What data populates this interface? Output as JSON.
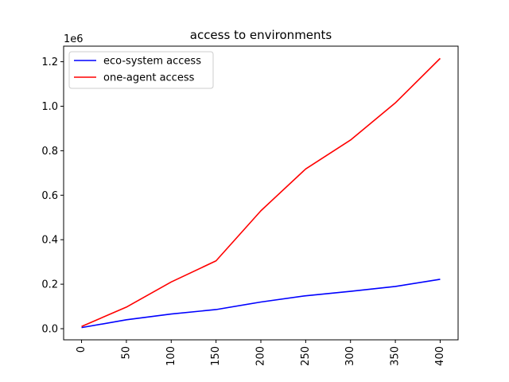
{
  "chart_data": {
    "type": "line",
    "title": "access to environments",
    "xlabel": "",
    "ylabel": "",
    "y_offset_label": "1e6",
    "x": [
      0,
      50,
      100,
      150,
      200,
      250,
      300,
      350,
      400
    ],
    "x_ticks": [
      "0",
      "50",
      "100",
      "150",
      "200",
      "250",
      "300",
      "350",
      "400"
    ],
    "x_tick_rotation": "vertical",
    "y_ticks": [
      "0.0",
      "0.2",
      "0.4",
      "0.6",
      "0.8",
      "1.0",
      "1.2"
    ],
    "y_tick_values": [
      0,
      0.2,
      0.4,
      0.6,
      0.8,
      1.0,
      1.2
    ],
    "xlim": [
      -20,
      420
    ],
    "ylim": [
      -0.05,
      1.27
    ],
    "grid": false,
    "legend": "top-left",
    "series": [
      {
        "name": "eco-system access",
        "color": "#0000ff",
        "values": [
          0.005,
          0.04,
          0.066,
          0.086,
          0.12,
          0.148,
          0.168,
          0.19,
          0.222
        ]
      },
      {
        "name": "one-agent access",
        "color": "#ff0000",
        "values": [
          0.01,
          0.097,
          0.21,
          0.305,
          0.53,
          0.718,
          0.848,
          1.015,
          1.215
        ]
      }
    ]
  }
}
